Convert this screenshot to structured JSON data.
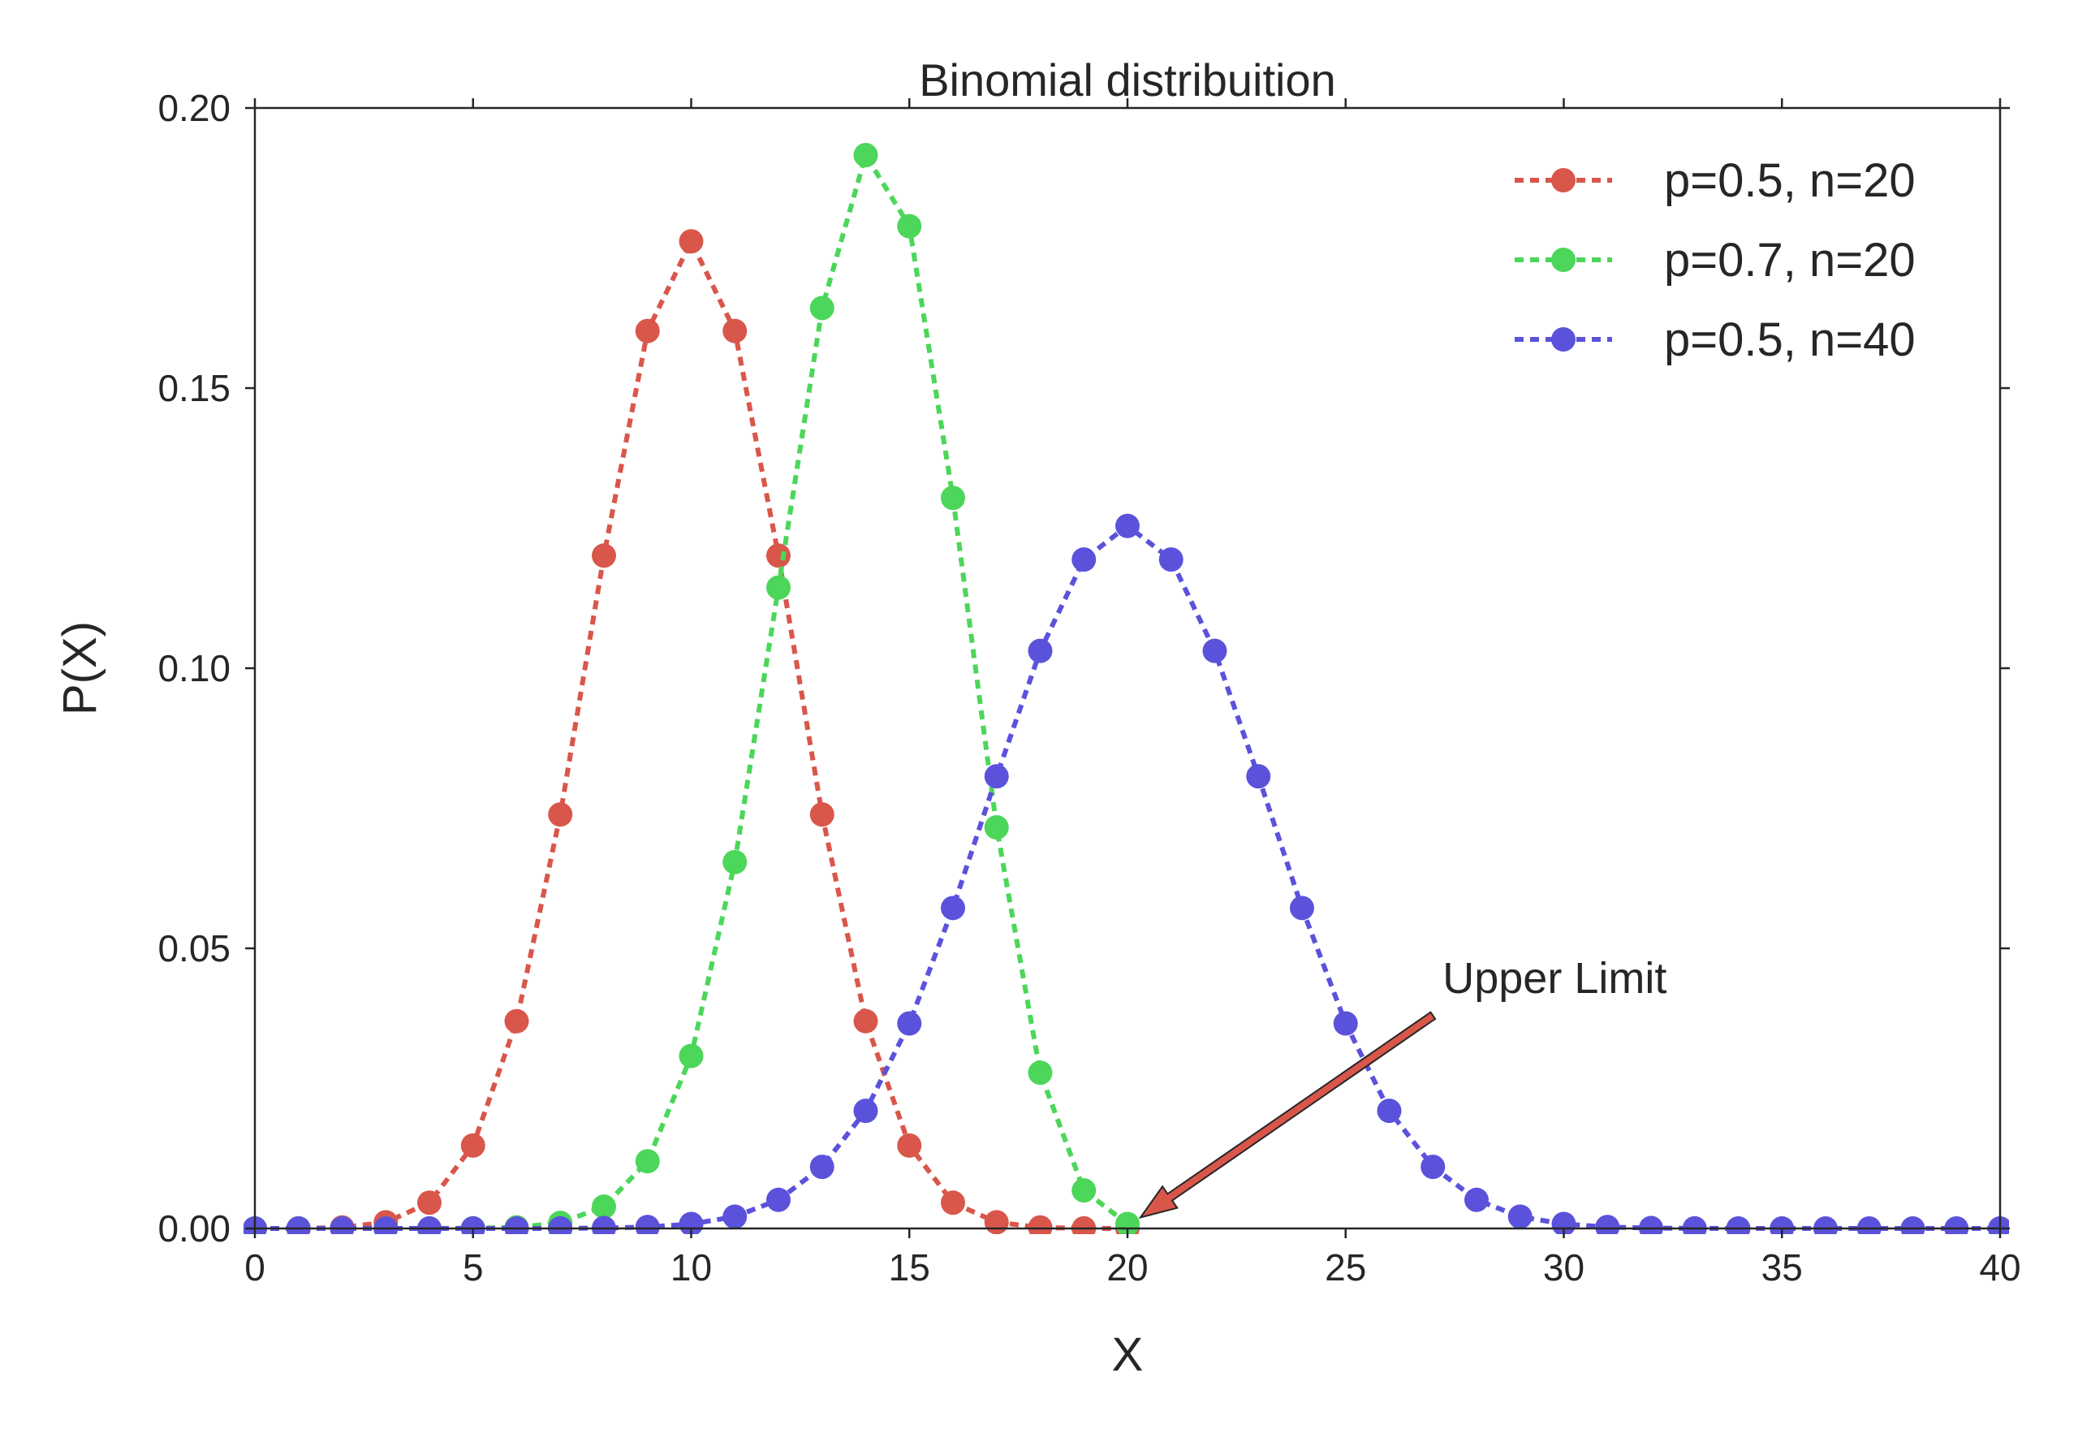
{
  "chart_data": {
    "type": "line",
    "title": "Binomial distribuition",
    "xlabel": "X",
    "ylabel": "P(X)",
    "xlim": [
      0,
      40
    ],
    "ylim": [
      0,
      0.2
    ],
    "xticks": [
      "0",
      "5",
      "10",
      "15",
      "20",
      "25",
      "30",
      "35",
      "40"
    ],
    "yticks": [
      "0.00",
      "0.05",
      "0.10",
      "0.15",
      "0.20"
    ],
    "grid": false,
    "legend_position": "top-right",
    "series": [
      {
        "name": "p=0.5, n=20",
        "color": "#d9564b",
        "x": [
          0,
          1,
          2,
          3,
          4,
          5,
          6,
          7,
          8,
          9,
          10,
          11,
          12,
          13,
          14,
          15,
          16,
          17,
          18,
          19,
          20
        ],
        "y": [
          1e-06,
          1.9e-05,
          0.00018,
          0.0011,
          0.0046,
          0.0148,
          0.037,
          0.0739,
          0.1201,
          0.1602,
          0.1762,
          0.1602,
          0.1201,
          0.0739,
          0.037,
          0.0148,
          0.0046,
          0.0011,
          0.00018,
          1.9e-05,
          1e-06
        ]
      },
      {
        "name": "p=0.7, n=20",
        "color": "#4cd65a",
        "x": [
          0,
          1,
          2,
          3,
          4,
          5,
          6,
          7,
          8,
          9,
          10,
          11,
          12,
          13,
          14,
          15,
          16,
          17,
          18,
          19,
          20
        ],
        "y": [
          0,
          0,
          0,
          0,
          5e-06,
          3.7e-05,
          0.0002,
          0.001,
          0.0039,
          0.012,
          0.0308,
          0.0654,
          0.1144,
          0.1643,
          0.1916,
          0.1789,
          0.1304,
          0.0716,
          0.0278,
          0.0068,
          0.0008
        ]
      },
      {
        "name": "p=0.5, n=40",
        "color": "#5b52db",
        "x": [
          0,
          1,
          2,
          3,
          4,
          5,
          6,
          7,
          8,
          9,
          10,
          11,
          12,
          13,
          14,
          15,
          16,
          17,
          18,
          19,
          20,
          21,
          22,
          23,
          24,
          25,
          26,
          27,
          28,
          29,
          30,
          31,
          32,
          33,
          34,
          35,
          36,
          37,
          38,
          39,
          40
        ],
        "y": [
          0,
          0,
          0,
          0,
          0,
          0,
          3e-06,
          1.7e-05,
          7e-05,
          0.00025,
          0.0008,
          0.0021,
          0.0051,
          0.011,
          0.021,
          0.0366,
          0.0572,
          0.0807,
          0.1031,
          0.1194,
          0.1254,
          0.1194,
          0.1031,
          0.0807,
          0.0572,
          0.0366,
          0.021,
          0.011,
          0.0051,
          0.0021,
          0.0008,
          0.00025,
          7e-05,
          1.7e-05,
          3e-06,
          0,
          0,
          0,
          0,
          0,
          0
        ]
      }
    ],
    "annotations": [
      {
        "text": "Upper Limit",
        "xy": [
          20,
          0.0008
        ],
        "xytext": [
          27,
          0.038
        ],
        "arrow_color": "#d9564b"
      }
    ]
  }
}
